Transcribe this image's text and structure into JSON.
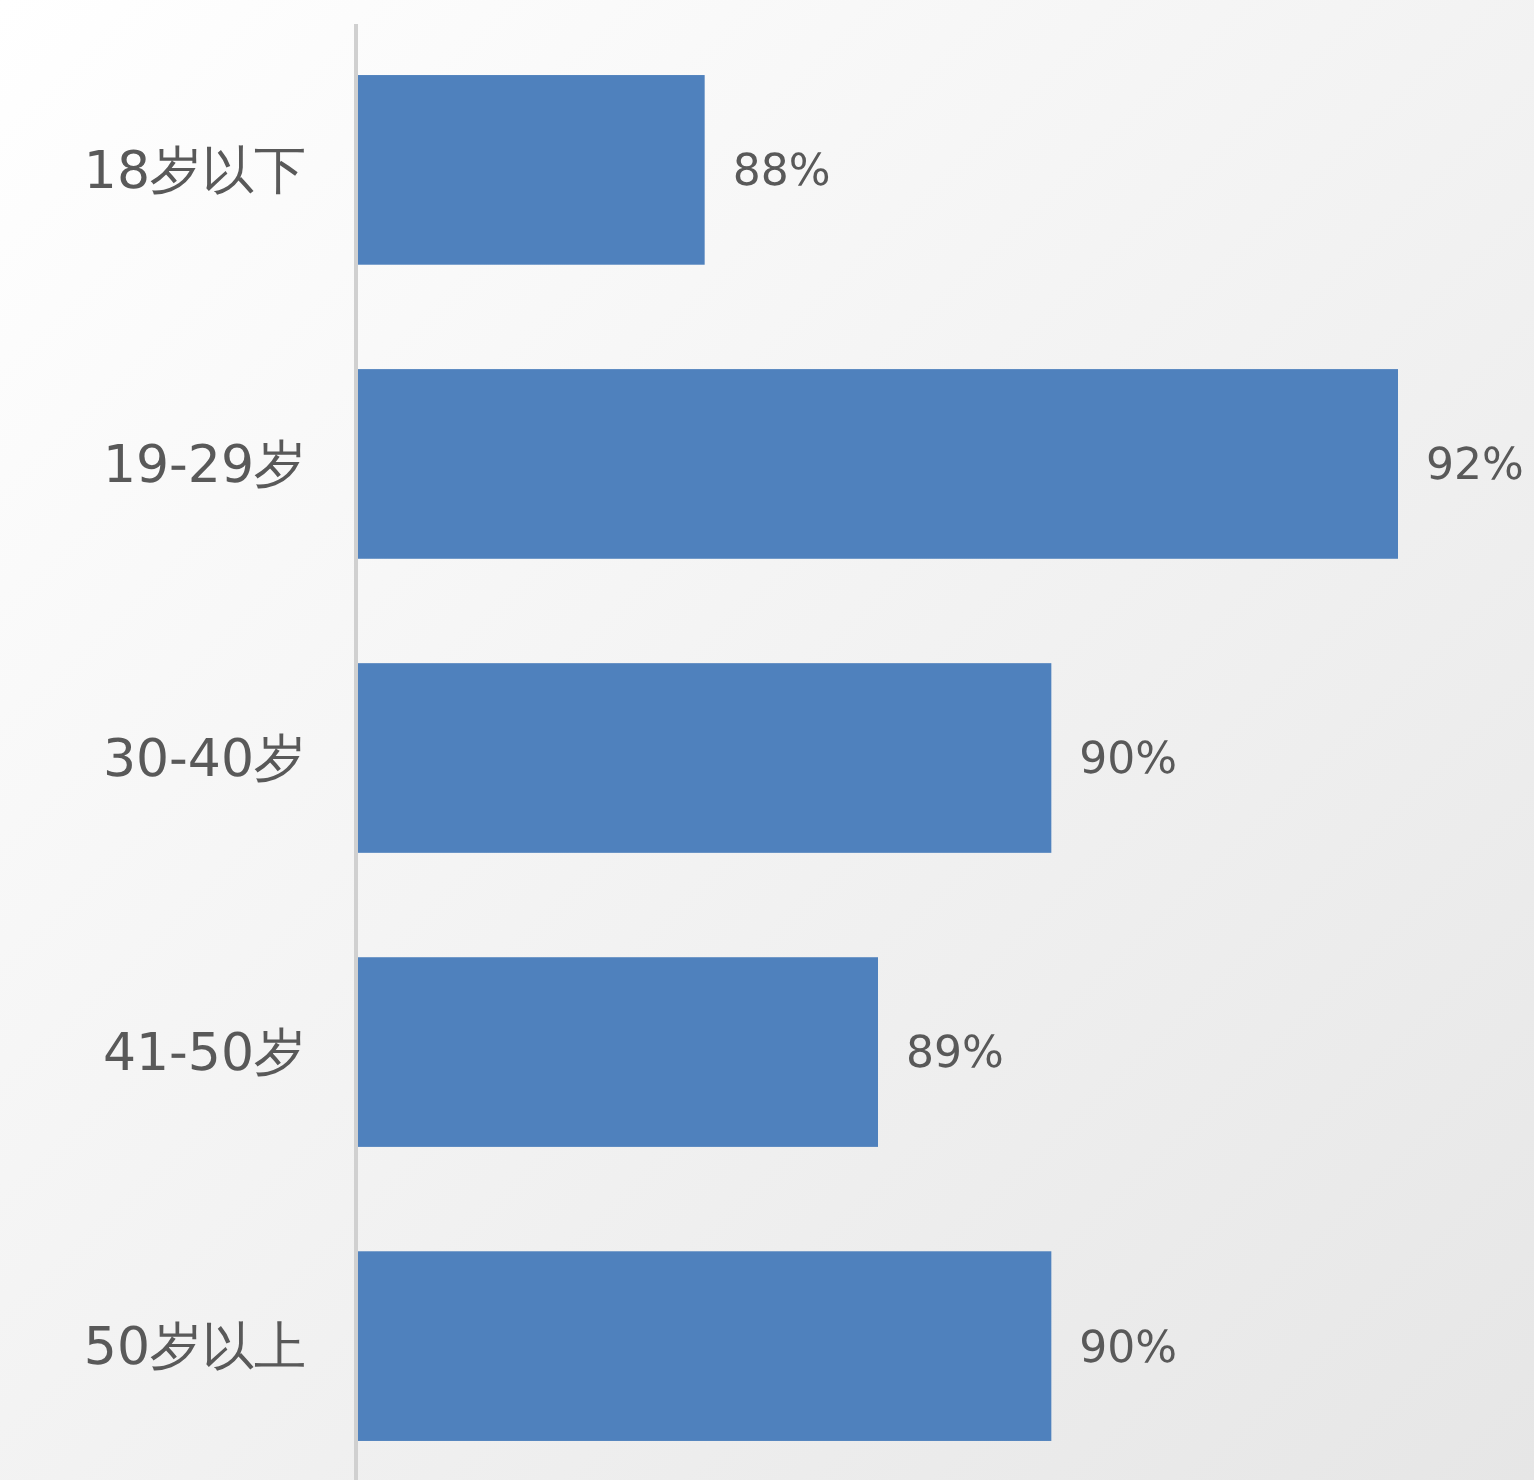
{
  "chart_data": {
    "type": "bar",
    "orientation": "horizontal",
    "categories": [
      "18岁以下",
      "19-29岁",
      "30-40岁",
      "41-50岁",
      "50岁以上"
    ],
    "values": [
      88,
      92,
      90,
      89,
      90
    ],
    "value_labels": [
      "88%",
      "92%",
      "90%",
      "89%",
      "90%"
    ],
    "color": "#4f81bd",
    "xlim": [
      86,
      92
    ]
  }
}
